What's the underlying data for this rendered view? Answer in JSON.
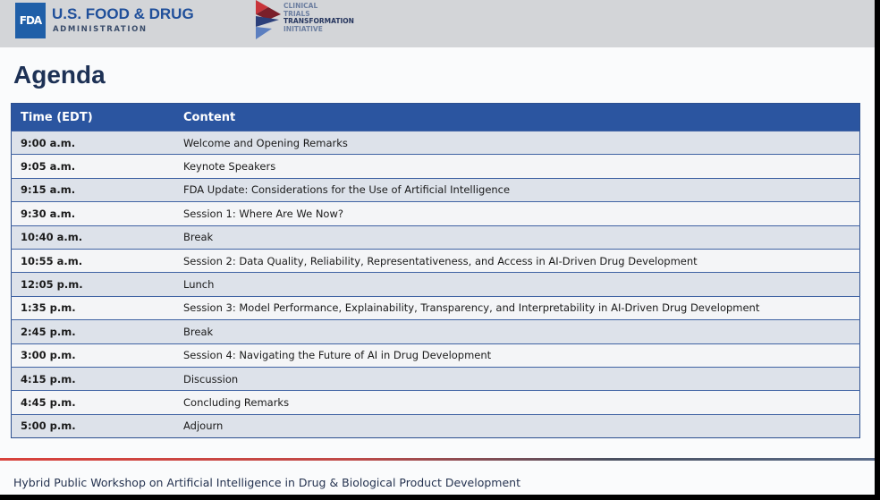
{
  "header": {
    "fda_logo_text": "FDA",
    "fda_name": "U.S. FOOD & DRUG",
    "fda_sub": "ADMINISTRATION",
    "ctti_lines": [
      "CLINICAL",
      "TRIALS",
      "TRANSFORMATION",
      "INITIATIVE"
    ]
  },
  "title": "Agenda",
  "table": {
    "columns": [
      "Time (EDT)",
      "Content"
    ],
    "rows": [
      [
        "9:00 a.m.",
        "Welcome and Opening Remarks"
      ],
      [
        "9:05 a.m.",
        "Keynote Speakers"
      ],
      [
        "9:15 a.m.",
        "FDA Update: Considerations for the Use of Artificial Intelligence"
      ],
      [
        "9:30 a.m.",
        "Session 1: Where Are We Now?"
      ],
      [
        "10:40 a.m.",
        "Break"
      ],
      [
        "10:55 a.m.",
        "Session 2: Data Quality, Reliability, Representativeness, and Access in AI-Driven Drug Development"
      ],
      [
        "12:05 p.m.",
        "Lunch"
      ],
      [
        "1:35 p.m.",
        "Session 3: Model Performance, Explainability, Transparency, and  Interpretability in AI-Driven Drug Development"
      ],
      [
        "2:45 p.m.",
        "Break"
      ],
      [
        "3:00 p.m.",
        "Session 4: Navigating the Future of AI in Drug Development"
      ],
      [
        "4:15 p.m.",
        "Discussion"
      ],
      [
        "4:45 p.m.",
        "Concluding Remarks"
      ],
      [
        "5:00 p.m.",
        "Adjourn"
      ]
    ]
  },
  "footer": "Hybrid Public Workshop on Artificial Intelligence in Drug & Biological Product Development",
  "colors": {
    "header_blue": "#2b55a0",
    "title": "#1d3155",
    "accent_red": "#d8423c"
  }
}
